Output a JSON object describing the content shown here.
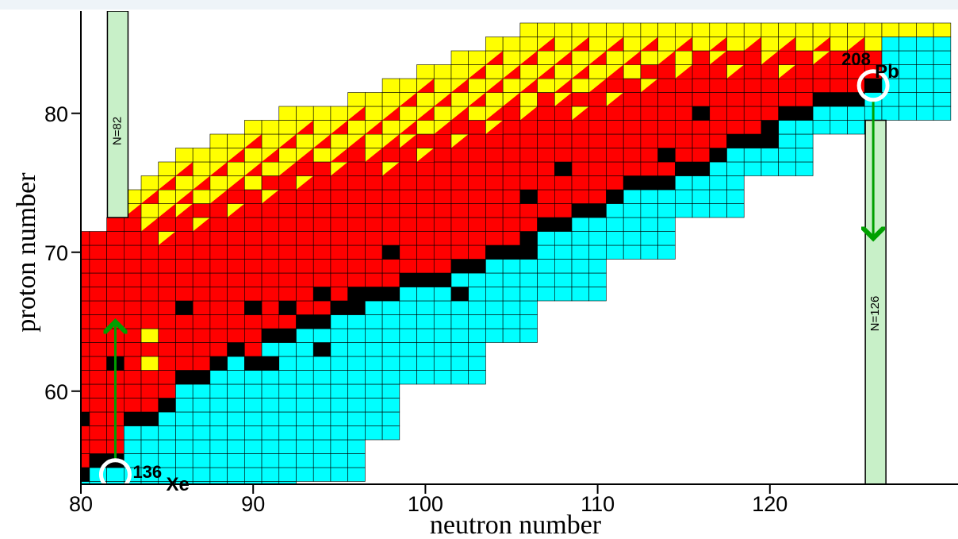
{
  "chart_data": {
    "type": "heatmap",
    "xlabel": "neutron number",
    "ylabel": "proton number",
    "xticks": [
      80,
      90,
      100,
      110,
      120
    ],
    "yticks": [
      60,
      70,
      80
    ],
    "xlim": [
      80,
      130
    ],
    "ylim": [
      53.3,
      86.7
    ],
    "grid": false,
    "colors": {
      "stable": "#000000",
      "red": "#ff0000",
      "yellow": "#ffff00",
      "cyan": "#00ffff",
      "shell_band": "#c8f0c8",
      "arrow": "#00a000"
    },
    "magic_numbers": [
      {
        "label": "N=82",
        "n": 82
      },
      {
        "label": "N=126",
        "n": 126
      }
    ],
    "annotations": [
      {
        "mass": "136",
        "symbol": "Xe",
        "n": 82,
        "z": 54
      },
      {
        "mass": "208",
        "symbol": "Pb",
        "n": 126,
        "z": 82
      }
    ],
    "arrows": [
      {
        "n": 82,
        "from_z": 55,
        "to_z": 65
      },
      {
        "n": 126,
        "from_z": 81,
        "to_z": 71
      }
    ],
    "stable_line": [
      [
        80,
        54
      ],
      [
        82,
        55
      ],
      [
        83,
        58
      ],
      [
        84,
        58
      ],
      [
        85,
        59
      ],
      [
        86,
        61
      ],
      [
        87,
        61
      ],
      [
        88,
        62
      ],
      [
        89,
        63
      ],
      [
        90,
        62
      ],
      [
        91,
        64
      ],
      [
        92,
        64
      ],
      [
        93,
        65
      ],
      [
        94,
        65
      ],
      [
        95,
        66
      ],
      [
        96,
        66
      ],
      [
        97,
        67
      ],
      [
        98,
        67
      ],
      [
        99,
        68
      ],
      [
        100,
        68
      ],
      [
        101,
        68
      ],
      [
        102,
        69
      ],
      [
        103,
        69
      ],
      [
        104,
        70
      ],
      [
        105,
        70
      ],
      [
        106,
        71
      ],
      [
        107,
        72
      ],
      [
        108,
        72
      ],
      [
        109,
        73
      ],
      [
        110,
        73
      ],
      [
        111,
        74
      ],
      [
        112,
        75
      ],
      [
        113,
        75
      ],
      [
        114,
        75
      ],
      [
        115,
        76
      ],
      [
        116,
        76
      ],
      [
        117,
        77
      ],
      [
        118,
        78
      ],
      [
        119,
        78
      ],
      [
        120,
        79
      ],
      [
        121,
        80
      ],
      [
        122,
        80
      ],
      [
        123,
        81
      ],
      [
        124,
        81
      ],
      [
        125,
        81
      ],
      [
        126,
        82
      ]
    ],
    "stable_isolated": [
      [
        80,
        58
      ],
      [
        82,
        62
      ],
      [
        86,
        66
      ],
      [
        90,
        66
      ],
      [
        91,
        62
      ],
      [
        92,
        66
      ],
      [
        94,
        63
      ],
      [
        94,
        67
      ],
      [
        96,
        67
      ],
      [
        98,
        70
      ],
      [
        102,
        67
      ],
      [
        106,
        70
      ],
      [
        106,
        74
      ],
      [
        108,
        76
      ],
      [
        114,
        77
      ],
      [
        116,
        80
      ],
      [
        120,
        78
      ]
    ]
  }
}
